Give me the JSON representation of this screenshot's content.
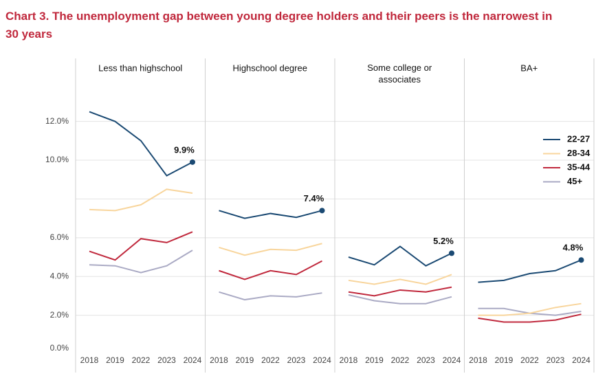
{
  "title": "Chart 3. The unemployment gap between young degree holders and their peers is the narrowest in 30 years",
  "chart_data": [
    {
      "type": "line",
      "title": "Less than highschool",
      "end_label": "9.9%",
      "categories": [
        "2018",
        "2019",
        "2022",
        "2023",
        "2024"
      ],
      "ylim": [
        0,
        15.25
      ],
      "yticks": [
        {
          "value": 0,
          "label": "0.0%"
        },
        {
          "value": 2,
          "label": "2.0%"
        },
        {
          "value": 4,
          "label": "4.0%"
        },
        {
          "value": 6,
          "label": "6.0%"
        },
        {
          "value": 8,
          "label": null
        },
        {
          "value": 10,
          "label": "10.0%"
        },
        {
          "value": 12,
          "label": "12.0%"
        }
      ],
      "grid": true,
      "series": [
        {
          "name": "22-27",
          "color": "#1b4a73",
          "values": [
            12.5,
            12.0,
            11.0,
            9.2,
            9.9
          ]
        },
        {
          "name": "28-34",
          "color": "#f8d59c",
          "values": [
            7.45,
            7.4,
            7.7,
            8.5,
            8.3
          ]
        },
        {
          "name": "35-44",
          "color": "#c0283c",
          "values": [
            5.3,
            4.85,
            5.95,
            5.75,
            6.3
          ]
        },
        {
          "name": "45+",
          "color": "#aaaac4",
          "values": [
            4.6,
            4.55,
            4.2,
            4.55,
            5.35
          ]
        }
      ]
    },
    {
      "type": "line",
      "title": "Highschool degree",
      "end_label": "7.4%",
      "categories": [
        "2018",
        "2019",
        "2022",
        "2023",
        "2024"
      ],
      "series": [
        {
          "name": "22-27",
          "color": "#1b4a73",
          "values": [
            7.4,
            7.0,
            7.25,
            7.05,
            7.4
          ]
        },
        {
          "name": "28-34",
          "color": "#f8d59c",
          "values": [
            5.5,
            5.1,
            5.4,
            5.35,
            5.7
          ]
        },
        {
          "name": "35-44",
          "color": "#c0283c",
          "values": [
            4.3,
            3.85,
            4.3,
            4.1,
            4.8
          ]
        },
        {
          "name": "45+",
          "color": "#aaaac4",
          "values": [
            3.2,
            2.8,
            3.0,
            2.95,
            3.15
          ]
        }
      ]
    },
    {
      "type": "line",
      "title": "Some college or associates",
      "end_label": "5.2%",
      "categories": [
        "2018",
        "2019",
        "2022",
        "2023",
        "2024"
      ],
      "series": [
        {
          "name": "22-27",
          "color": "#1b4a73",
          "values": [
            5.0,
            4.6,
            5.55,
            4.55,
            5.2
          ]
        },
        {
          "name": "28-34",
          "color": "#f8d59c",
          "values": [
            3.8,
            3.6,
            3.85,
            3.6,
            4.1
          ]
        },
        {
          "name": "35-44",
          "color": "#c0283c",
          "values": [
            3.2,
            3.0,
            3.3,
            3.2,
            3.45
          ]
        },
        {
          "name": "45+",
          "color": "#aaaac4",
          "values": [
            3.05,
            2.75,
            2.6,
            2.6,
            2.95
          ]
        }
      ]
    },
    {
      "type": "line",
      "title": "BA+",
      "end_label": "4.8%",
      "categories": [
        "2018",
        "2019",
        "2022",
        "2023",
        "2024"
      ],
      "series": [
        {
          "name": "22-27",
          "color": "#1b4a73",
          "values": [
            3.7,
            3.8,
            4.15,
            4.3,
            4.85
          ]
        },
        {
          "name": "28-34",
          "color": "#f8d59c",
          "values": [
            2.0,
            2.0,
            2.1,
            2.4,
            2.6
          ]
        },
        {
          "name": "35-44",
          "color": "#c0283c",
          "values": [
            1.85,
            1.65,
            1.65,
            1.75,
            2.05
          ]
        },
        {
          "name": "45+",
          "color": "#aaaac4",
          "values": [
            2.35,
            2.35,
            2.1,
            2.0,
            2.2
          ]
        }
      ]
    }
  ]
}
